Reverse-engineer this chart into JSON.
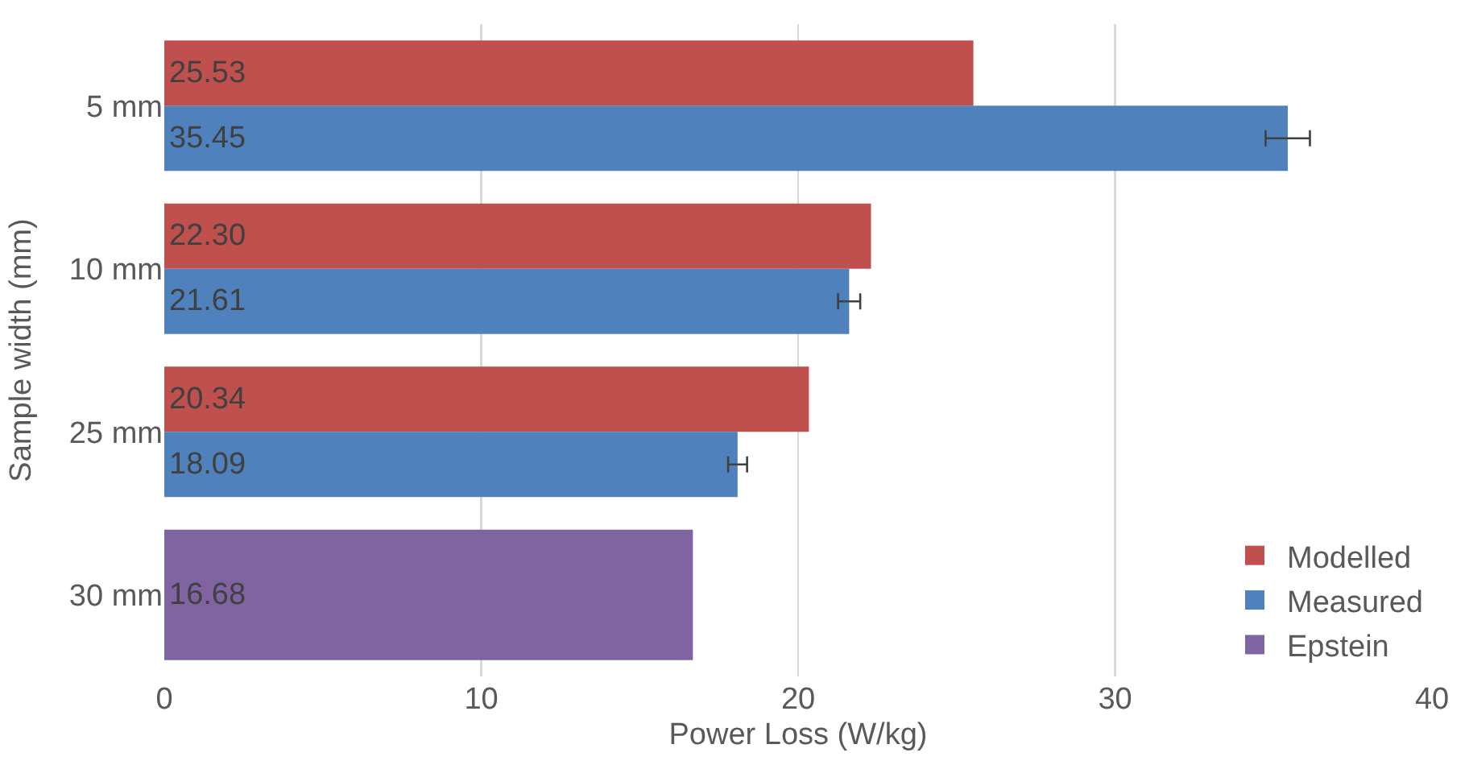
{
  "chart_data": {
    "type": "bar",
    "orientation": "horizontal",
    "categories": [
      "5 mm",
      "10 mm",
      "25 mm",
      "30 mm"
    ],
    "series": [
      {
        "name": "Modelled",
        "color": "#c0504d",
        "values": [
          25.53,
          22.3,
          20.34,
          null
        ],
        "value_labels": [
          "25.53",
          "22.30",
          "20.34",
          null
        ]
      },
      {
        "name": "Measured",
        "color": "#4f81bd",
        "values": [
          35.45,
          21.61,
          18.09,
          null
        ],
        "value_labels": [
          "35.45",
          "21.61",
          "18.09",
          null
        ],
        "errors": [
          0.7,
          0.35,
          0.3,
          null
        ]
      },
      {
        "name": "Epstein",
        "color": "#8064a2",
        "values": [
          null,
          null,
          null,
          16.68
        ],
        "value_labels": [
          null,
          null,
          null,
          "16.68"
        ]
      }
    ],
    "xlabel": "Power Loss (W/kg)",
    "ylabel": "Sample width (mm)",
    "xlim": [
      0,
      40
    ],
    "xticks": [
      0,
      10,
      20,
      30,
      40
    ],
    "grid": "x",
    "legend": "bottom right"
  }
}
